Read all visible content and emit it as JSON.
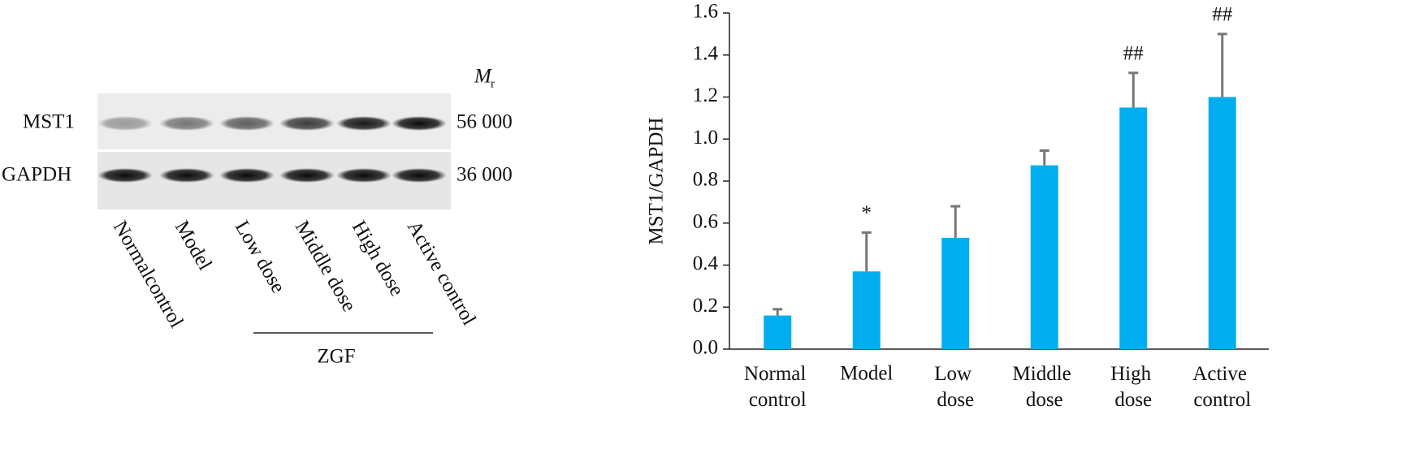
{
  "blot": {
    "rows": [
      "MST1",
      "GAPDH"
    ],
    "weights": [
      "56 000",
      "36 000"
    ],
    "mw_symbol": "M",
    "mw_subscript": "r",
    "lanes": [
      "Normalcontrol",
      "Model",
      "Low dose",
      "Middle dose",
      "High dose",
      "Active control"
    ],
    "group_label": "ZGF"
  },
  "chart_data": {
    "type": "bar",
    "y_label": "MST1/GAPDH",
    "categories": [
      "Normal control",
      "Model",
      "Low dose",
      "Middle dose",
      "High dose",
      "Active control"
    ],
    "values": [
      0.16,
      0.37,
      0.53,
      0.875,
      1.15,
      1.2
    ],
    "errors": [
      0.03,
      0.185,
      0.15,
      0.07,
      0.165,
      0.3
    ],
    "value_annotations": [
      null,
      "*",
      null,
      null,
      "##",
      "##"
    ],
    "color": "#00aeef",
    "error_color": "#777777",
    "ylim": [
      0,
      1.6
    ],
    "yticks": [
      {
        "value": 0,
        "label": "0.0"
      },
      0.2,
      0.4,
      0.6,
      0.8,
      {
        "value": 1,
        "label": "1.0"
      },
      1.2,
      1.4,
      1.6
    ]
  }
}
